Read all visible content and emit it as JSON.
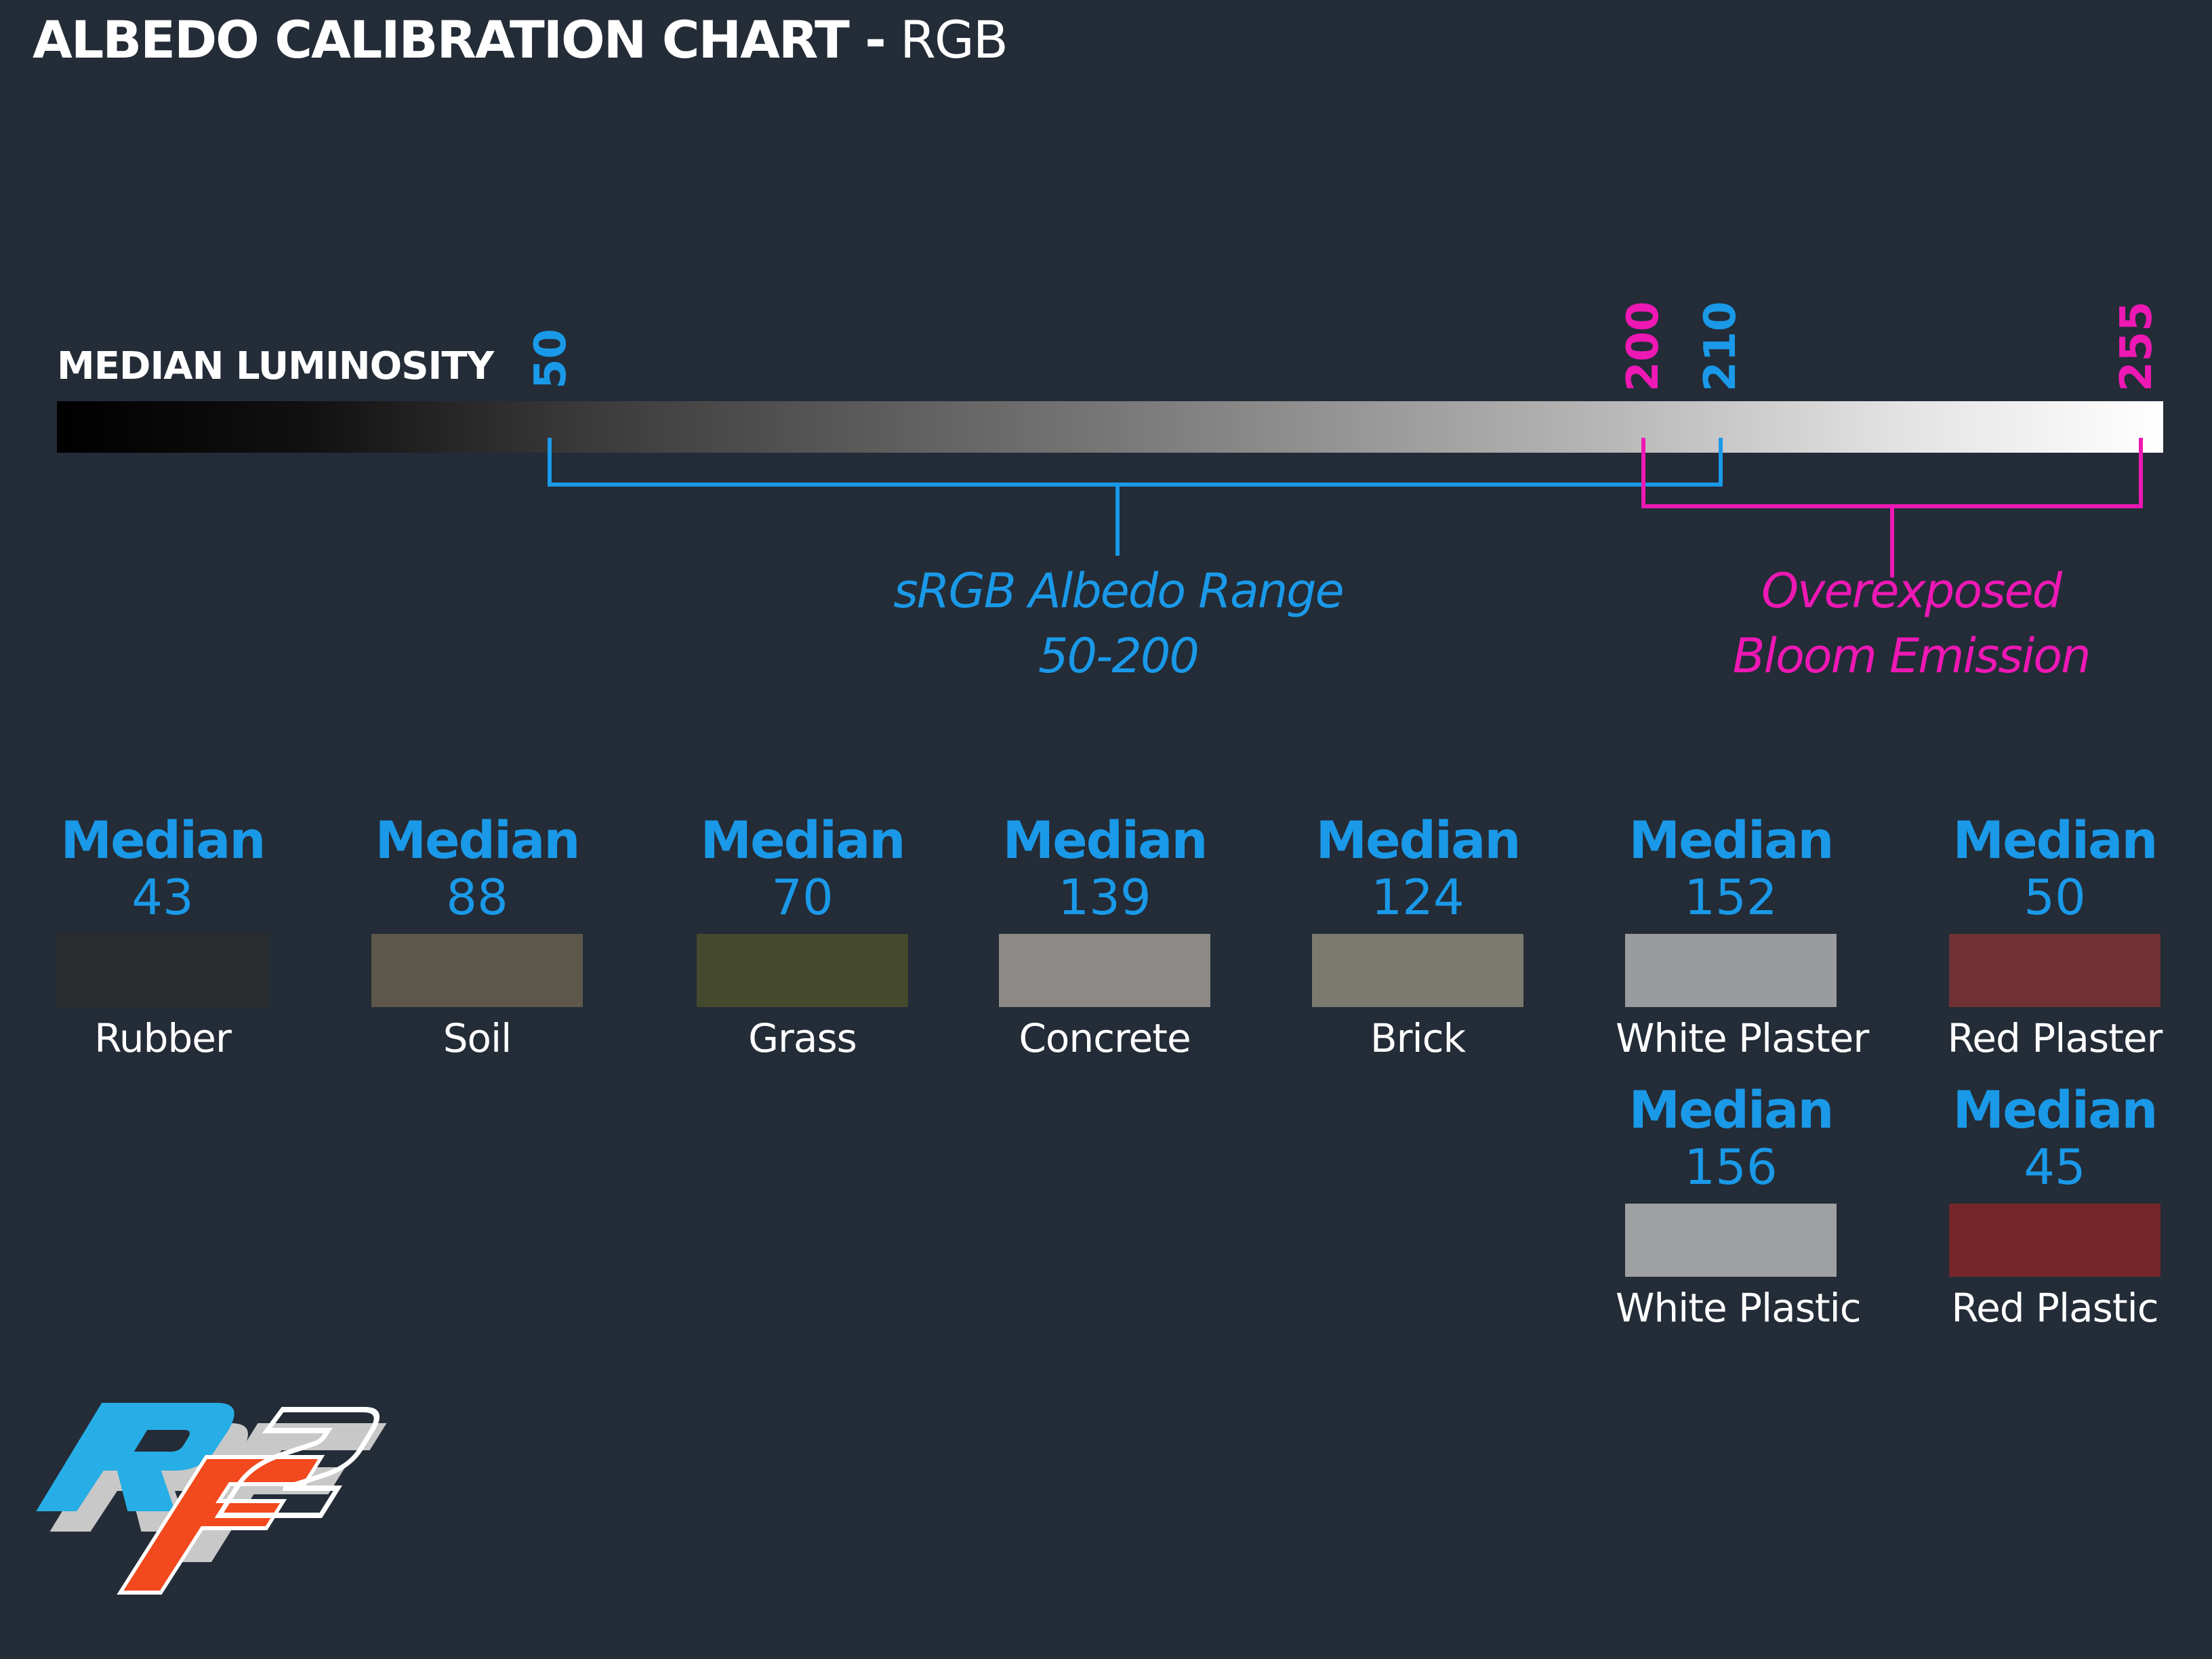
{
  "title": {
    "bold": "ALBEDO CALIBRATION CHART -",
    "light": "RGB"
  },
  "scale": {
    "label": "MEDIAN LUMINOSITY",
    "ticks": [
      {
        "value": "50",
        "color": "blue"
      },
      {
        "value": "200",
        "color": "pink"
      },
      {
        "value": "210",
        "color": "blue"
      },
      {
        "value": "255",
        "color": "pink"
      }
    ]
  },
  "ranges": {
    "srgb": {
      "line1": "sRGB Albedo Range",
      "line2": "50-200"
    },
    "overexposed": {
      "line1": "Overexposed",
      "line2": "Bloom Emission"
    }
  },
  "median_word": "Median",
  "materials": [
    {
      "name": "Rubber",
      "median": "43",
      "color": "#2a2c2e"
    },
    {
      "name": "Soil",
      "median": "88",
      "color": "#5e584a"
    },
    {
      "name": "Grass",
      "median": "70",
      "color": "#454a2e"
    },
    {
      "name": "Concrete",
      "median": "139",
      "color": "#8c8986"
    },
    {
      "name": "Brick",
      "median": "124",
      "color": "#7b7a6f"
    },
    {
      "name": "White Plaster",
      "median": "152",
      "color": "#9a9b9e"
    },
    {
      "name": "Red Plaster",
      "median": "50",
      "color": "#703134"
    },
    {
      "name": "White Plastic",
      "median": "156",
      "color": "#9fa0a2"
    },
    {
      "name": "Red Plastic",
      "median": "45",
      "color": "#75262a"
    }
  ],
  "colors": {
    "blue": "#1a99e8",
    "pink": "#ee18b4",
    "background": "#232c37"
  },
  "logo": {
    "text": "RF2"
  }
}
